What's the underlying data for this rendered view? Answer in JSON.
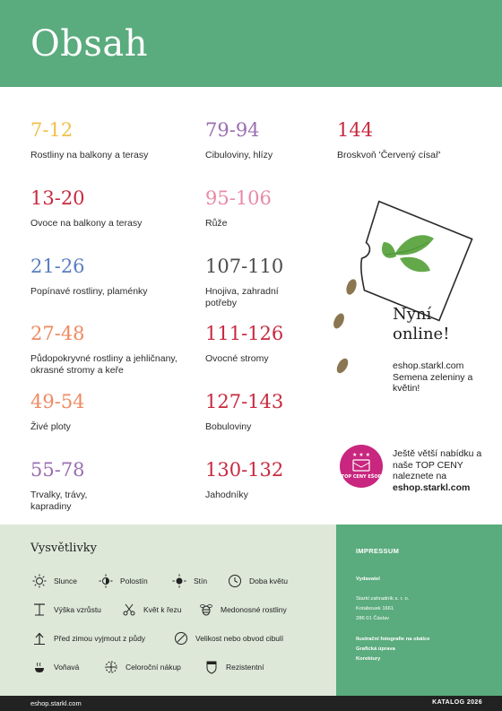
{
  "header": {
    "title": "Obsah"
  },
  "entries": [
    {
      "range": "7-12",
      "label": "Rostliny na balkony a terasy",
      "color": "#f0c04a"
    },
    {
      "range": "13-20",
      "label": "Ovoce na balkony a terasy",
      "color": "#c8293f"
    },
    {
      "range": "21-26",
      "label": "Popínavé rostliny, plaménky",
      "color": "#5a7dbf"
    },
    {
      "range": "27-48",
      "label": "Půdopokryvné rostliny a jehličnany, okrasné stromy a keře",
      "color": "#ee8a62"
    },
    {
      "range": "49-54",
      "label": "Živé ploty",
      "color": "#ee8a62"
    },
    {
      "range": "55-78",
      "label": "Trvalky, trávy, kapradiny",
      "color": "#9a6fb0"
    },
    {
      "range": "79-94",
      "label": "Cibuloviny, hlízy",
      "color": "#9a6fb0"
    },
    {
      "range": "95-106",
      "label": "Růže",
      "color": "#e88aa6"
    },
    {
      "range": "107-110",
      "label": "Hnojiva, zahradní potřeby",
      "color": "#4d4d4d"
    },
    {
      "range": "111-126",
      "label": "Ovocné stromy",
      "color": "#c8293f"
    },
    {
      "range": "127-143",
      "label": "Bobuloviny",
      "color": "#c8293f"
    },
    {
      "range": "130-132",
      "label": "Jahodníky",
      "color": "#c8293f"
    },
    {
      "range": "144",
      "label": "Broskvoň 'Červený císař'",
      "color": "#c8293f"
    }
  ],
  "online": {
    "title": "Nyní online!",
    "text": "eshop.starkl.com Semena zeleniny a květin!"
  },
  "promo": {
    "text": "Ještě větší nabídku a naše TOP CENY naleznete na",
    "link": "eshop.starkl.com",
    "badge_text": "TOP CENY EŠOP",
    "badge_color": "#c8267f"
  },
  "legend": {
    "title": "Vysvětlivky",
    "items": [
      {
        "label": "Slunce",
        "icon": "sun-icon"
      },
      {
        "label": "Polostín",
        "icon": "half-shade-icon"
      },
      {
        "label": "Stín",
        "icon": "shade-icon"
      },
      {
        "label": "Doba květu",
        "icon": "clock-icon"
      },
      {
        "label": "Výška vzrůstu",
        "icon": "height-icon"
      },
      {
        "label": "Květ k řezu",
        "icon": "scissors-icon"
      },
      {
        "label": "Medonosné rostliny",
        "icon": "bee-icon"
      },
      {
        "label": "Před zimou vyjmout z půdy",
        "icon": "dig-up-icon"
      },
      {
        "label": "Velikost nebo obvod cibulí",
        "icon": "bulb-size-icon"
      },
      {
        "label": "Voňavá",
        "icon": "fragrance-icon"
      },
      {
        "label": "Celoroční nákup",
        "icon": "year-round-icon"
      },
      {
        "label": "Rezistentní",
        "icon": "resistant-icon"
      }
    ]
  },
  "impressum": {
    "title": "IMPRESSUM",
    "publisher_label": "Vydavatel",
    "company": "Starkl zahradník s. r. o.",
    "street": "Kotabouek 1661",
    "city": "286 01 Čáslav",
    "photos": "Ilustrační fotografie na obálce",
    "graphics": "Grafická úprava",
    "proofreading": "Korektury"
  },
  "footer": {
    "left": "eshop.starkl.com",
    "right": "KATALOG 2026"
  },
  "colors": {
    "brand_green": "#5aab7d",
    "legend_bg": "#dde8d9",
    "dark": "#222222"
  }
}
